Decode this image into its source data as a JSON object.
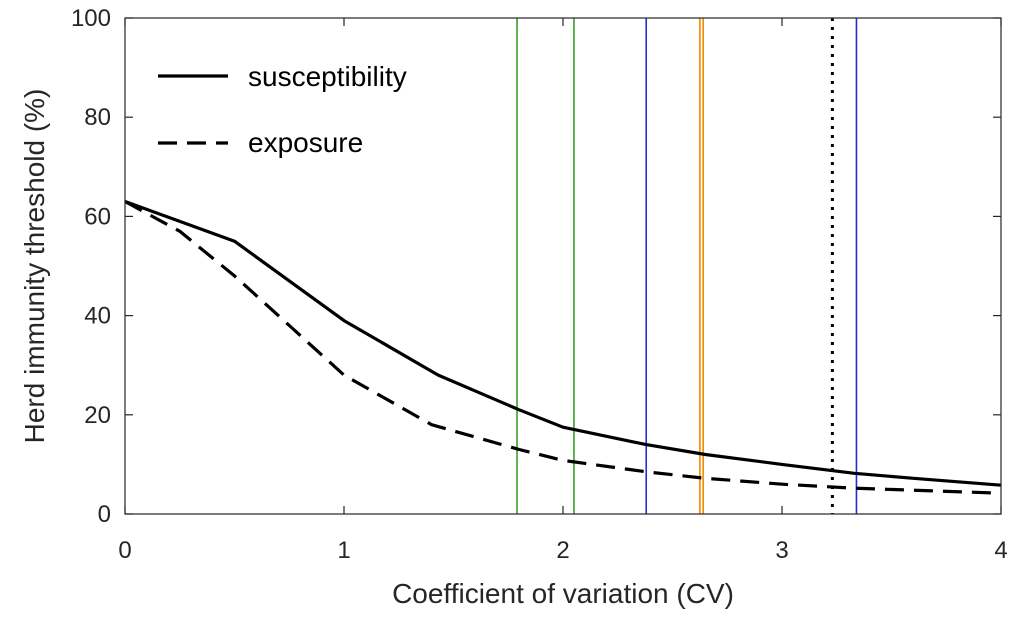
{
  "chart_data": {
    "type": "line",
    "xlabel": "Coefficient of variation (CV)",
    "ylabel": "Herd immunity threshold (%)",
    "xlim": [
      0,
      4
    ],
    "ylim": [
      0,
      100
    ],
    "x_ticks": [
      "0",
      "1",
      "2",
      "3",
      "4"
    ],
    "y_ticks": [
      "0",
      "20",
      "40",
      "60",
      "80",
      "100"
    ],
    "grid": false,
    "legend_position": "top-left",
    "series": [
      {
        "name": "susceptibility",
        "style": "solid",
        "color": "#000000",
        "x": [
          0,
          0.5,
          1.0,
          1.43,
          1.8,
          2.0,
          2.38,
          2.65,
          3.0,
          3.33,
          3.6,
          4.0
        ],
        "y": [
          63,
          55,
          39,
          28,
          21,
          17.5,
          14,
          12,
          10,
          8.2,
          7.2,
          5.8
        ]
      },
      {
        "name": "exposure",
        "style": "dashed",
        "color": "#000000",
        "x": [
          0,
          0.25,
          0.5,
          0.75,
          1.0,
          1.4,
          1.8,
          2.0,
          2.38,
          2.65,
          3.0,
          3.33,
          4.0
        ],
        "y": [
          63,
          57,
          48,
          38,
          28,
          18,
          13,
          10.8,
          8.5,
          7.2,
          6.0,
          5.2,
          4.2
        ]
      }
    ],
    "vertical_lines": [
      {
        "x": 1.79,
        "color": "#3a9e2a",
        "style": "solid"
      },
      {
        "x": 2.05,
        "color": "#3a9e2a",
        "style": "solid"
      },
      {
        "x": 2.38,
        "color": "#1f2fd0",
        "style": "solid"
      },
      {
        "x": 2.625,
        "color": "#f08a00",
        "style": "solid"
      },
      {
        "x": 2.64,
        "color": "#f08a00",
        "style": "solid"
      },
      {
        "x": 3.23,
        "color": "#000000",
        "style": "dotted"
      },
      {
        "x": 3.34,
        "color": "#1f2fd0",
        "style": "solid"
      }
    ]
  }
}
